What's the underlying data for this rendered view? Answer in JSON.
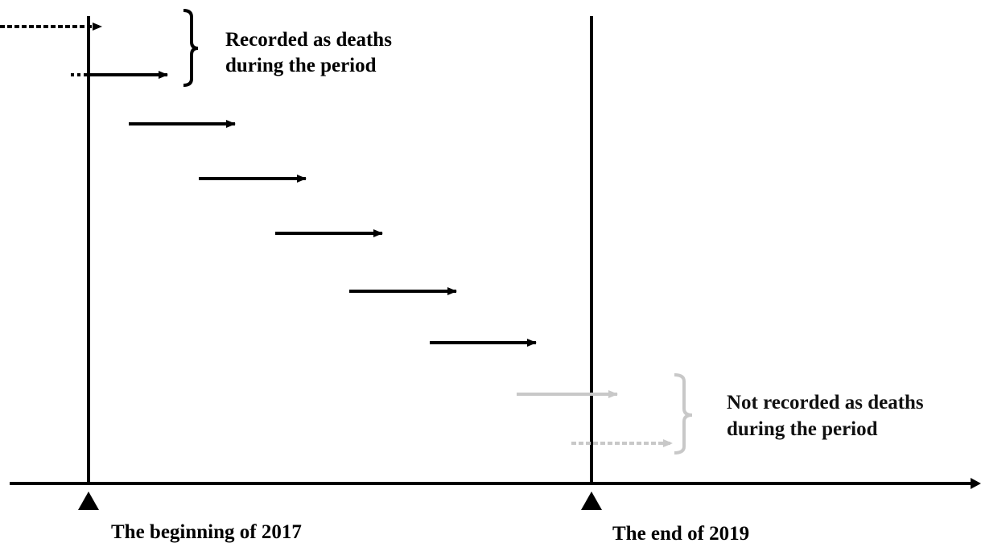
{
  "labels": {
    "recorded_line1": "Recorded as deaths",
    "recorded_line2": "during the period",
    "not_recorded_line1": "Not recorded as deaths",
    "not_recorded_line2": "during the period",
    "start_marker": "The beginning of 2017",
    "end_marker": "The end of 2019"
  },
  "colors": {
    "ink": "#000000",
    "faded": "#c8c8c8",
    "background": "#ffffff"
  },
  "icons": {
    "axis_arrow": "right-arrow",
    "markers": "up-triangle",
    "brackets": "right-curly-brace"
  }
}
